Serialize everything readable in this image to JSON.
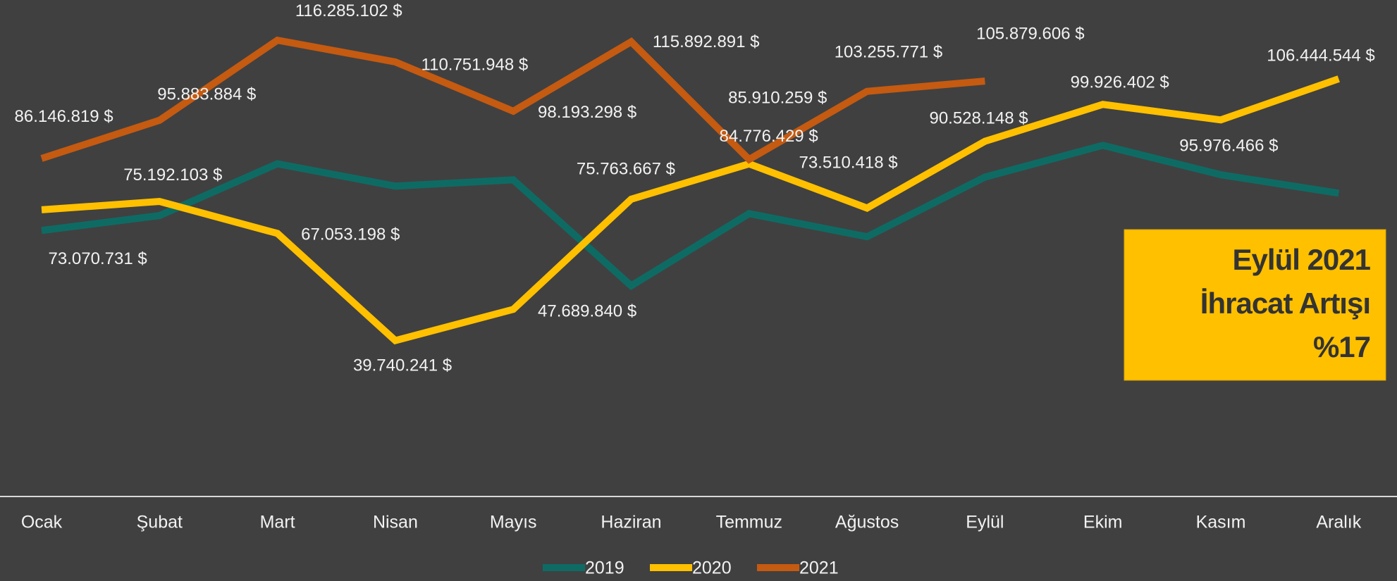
{
  "chart_data": {
    "type": "line",
    "categories": [
      "Ocak",
      "Şubat",
      "Mart",
      "Nisan",
      "Mayıs",
      "Haziran",
      "Temmuz",
      "Ağustos",
      "Eylül",
      "Ekim",
      "Kasım",
      "Aralık"
    ],
    "series": [
      {
        "name": "2019",
        "color": "#0e6b64",
        "values": [
          67800000,
          71600000,
          84800000,
          79100000,
          80700000,
          53700000,
          72100000,
          66200000,
          81400000,
          89500000,
          82000000,
          77300000
        ]
      },
      {
        "name": "2020",
        "color": "#ffc000",
        "values": [
          73070731,
          75192103,
          67053198,
          39740241,
          47689840,
          75763667,
          84776429,
          73510418,
          90528148,
          99926402,
          95976466,
          106444544
        ],
        "value_labels": [
          "73.070.731 $",
          "75.192.103 $",
          "67.053.198 $",
          "39.740.241 $",
          "47.689.840 $",
          "75.763.667 $",
          "84.776.429 $",
          "73.510.418 $",
          "90.528.148 $",
          "99.926.402 $",
          "95.976.466 $",
          "106.444.544 $"
        ]
      },
      {
        "name": "2021",
        "color": "#c55a11",
        "values": [
          86146819,
          95883884,
          116285102,
          110751948,
          98193298,
          115892891,
          85910259,
          103255771,
          105879606,
          null,
          null,
          null
        ],
        "value_labels": [
          "86.146.819 $",
          "95.883.884 $",
          "116.285.102 $",
          "110.751.948 $",
          "98.193.298 $",
          "115.892.891 $",
          "85.910.259 $",
          "103.255.771 $",
          "105.879.606 $",
          null,
          null,
          null
        ]
      }
    ],
    "ylim": [
      0,
      126000000
    ],
    "annotation": [
      "Eylül 2021",
      "İhracat Artışı",
      "%17"
    ],
    "annotation_color": "#ffc000"
  }
}
